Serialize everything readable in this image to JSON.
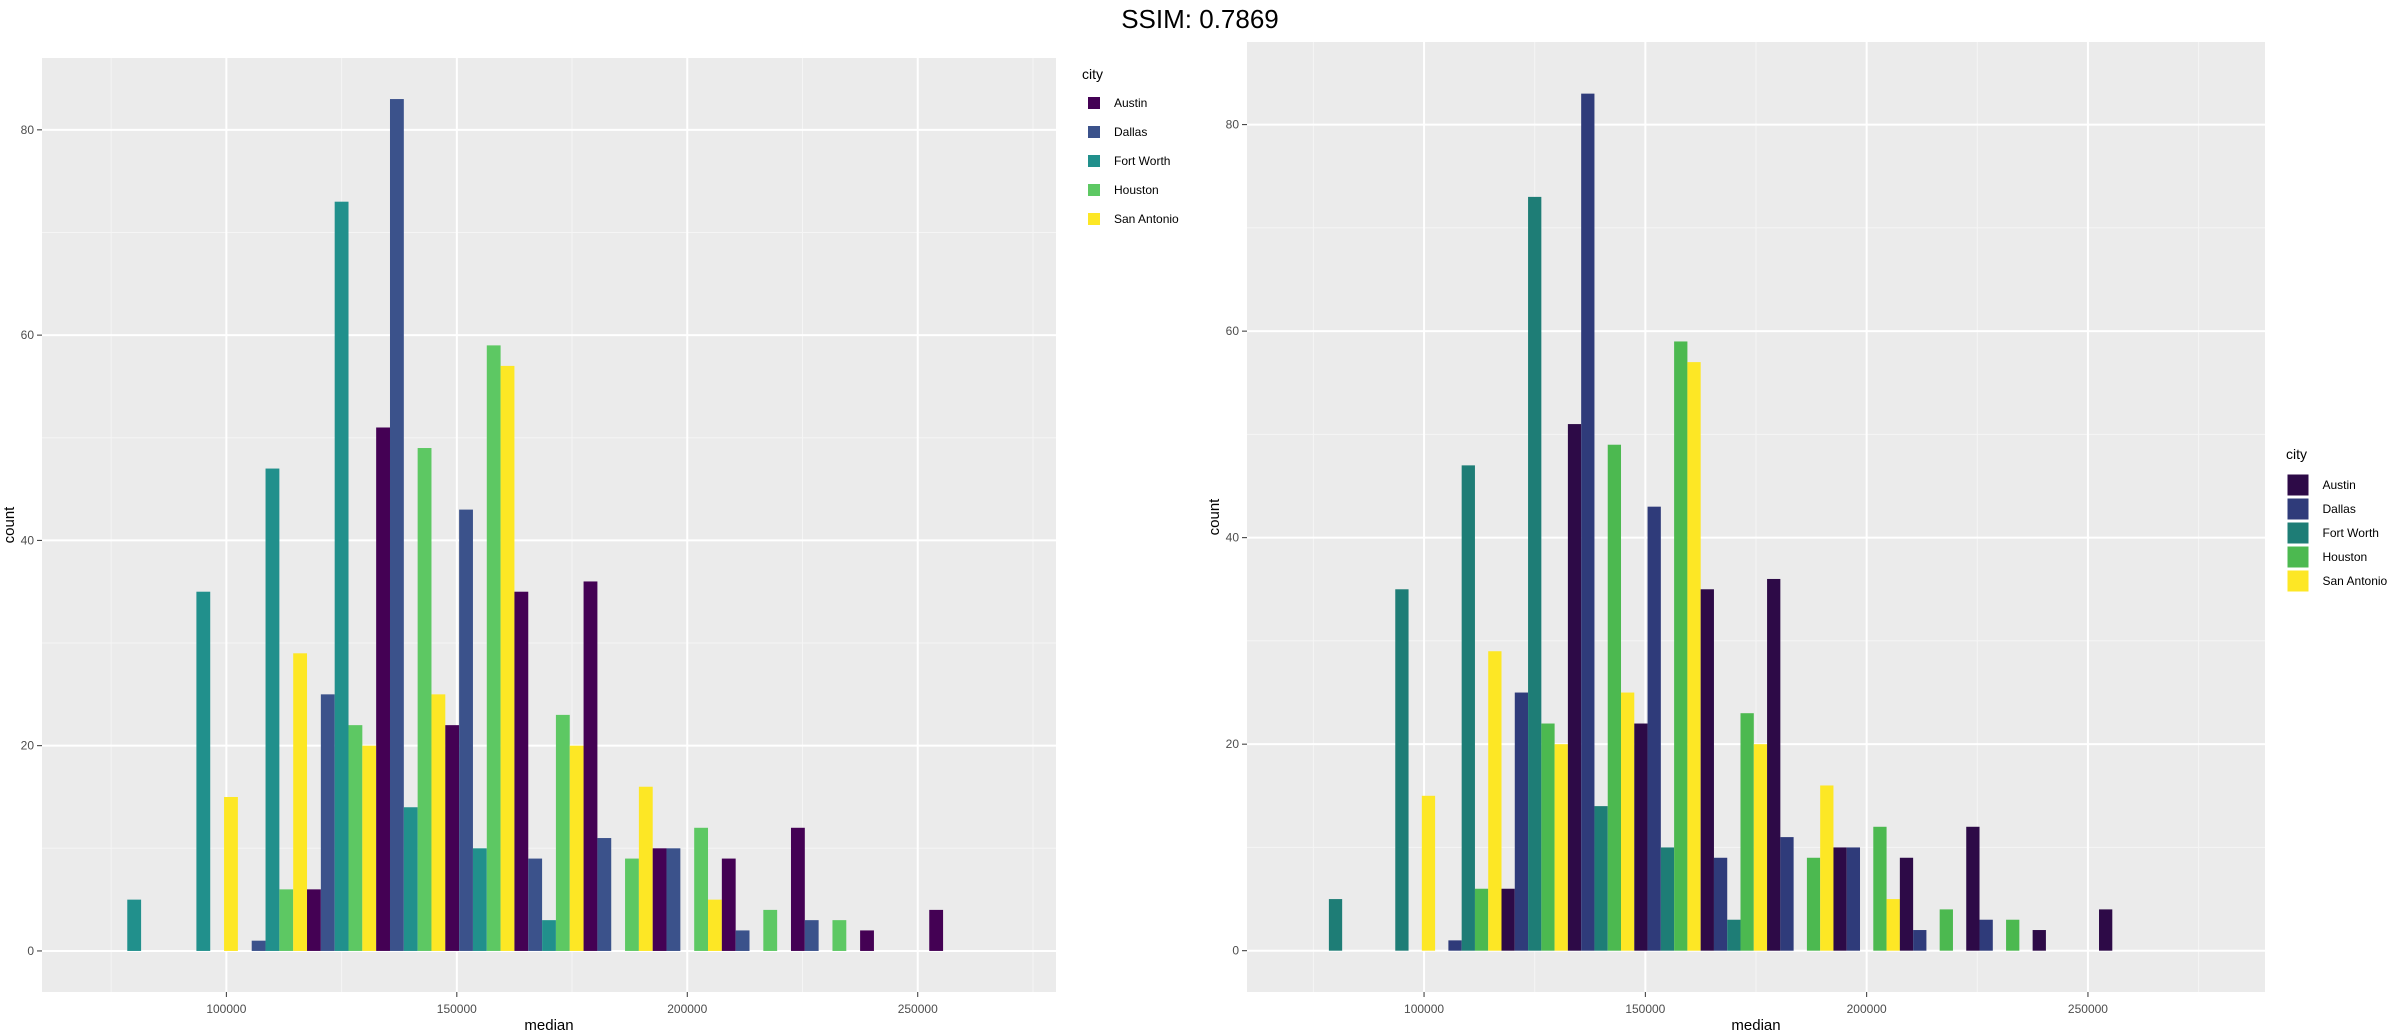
{
  "title": "SSIM: 0.7869",
  "colors": {
    "panel_bg": "#EBEBEB",
    "grid_major": "#FFFFFF",
    "left_palette": [
      "#440154",
      "#3B528B",
      "#21908C",
      "#5DC863",
      "#FDE725"
    ],
    "right_palette": [
      "#2D0A47",
      "#2F3B7A",
      "#1E7D76",
      "#4CB950",
      "#FDE725"
    ]
  },
  "chart_data": [
    {
      "type": "bar",
      "xlabel": "median",
      "ylabel": "count",
      "xlim": [
        60000,
        280000
      ],
      "ylim": [
        -4,
        87
      ],
      "xticks": [
        100000,
        150000,
        200000,
        250000
      ],
      "xtick_labels": [
        "100000",
        "150000",
        "200000",
        "250000"
      ],
      "yticks": [
        0,
        20,
        40,
        60,
        80
      ],
      "ytick_labels": [
        "0",
        "20",
        "40",
        "60",
        "80"
      ],
      "legend": {
        "title": "city",
        "position": "top-right",
        "entries": [
          "Austin",
          "Dallas",
          "Fort Worth",
          "Houston",
          "San Antonio"
        ]
      },
      "bin_width": 15000,
      "bin_centers": [
        80000,
        95000,
        110000,
        125000,
        140000,
        155000,
        170000,
        185000,
        200000,
        215000,
        230000,
        245000,
        260000
      ],
      "series": [
        {
          "name": "Austin",
          "values": [
            0,
            0,
            0,
            6,
            51,
            22,
            35,
            36,
            10,
            9,
            12,
            2,
            4
          ]
        },
        {
          "name": "Dallas",
          "values": [
            0,
            0,
            1,
            25,
            83,
            43,
            9,
            11,
            10,
            2,
            3,
            0,
            0
          ]
        },
        {
          "name": "Fort Worth",
          "values": [
            5,
            35,
            47,
            73,
            14,
            10,
            3,
            0,
            0,
            0,
            0,
            0,
            0
          ]
        },
        {
          "name": "Houston",
          "values": [
            0,
            0,
            6,
            22,
            49,
            59,
            23,
            9,
            12,
            4,
            3,
            0,
            0
          ]
        },
        {
          "name": "San Antonio",
          "values": [
            0,
            15,
            29,
            20,
            25,
            57,
            20,
            16,
            5,
            0,
            0,
            0,
            0
          ]
        }
      ]
    },
    {
      "type": "bar",
      "xlabel": "median",
      "ylabel": "count",
      "xlim": [
        60000,
        290000
      ],
      "ylim": [
        -4,
        88
      ],
      "xticks": [
        100000,
        150000,
        200000,
        250000
      ],
      "xtick_labels": [
        "100000",
        "150000",
        "200000",
        "250000"
      ],
      "yticks": [
        0,
        20,
        40,
        60,
        80
      ],
      "ytick_labels": [
        "0",
        "20",
        "40",
        "60",
        "80"
      ],
      "legend": {
        "title": "city",
        "position": "right",
        "entries": [
          "Austin",
          "Dallas",
          "Fort Worth",
          "Houston",
          "San Antonio"
        ]
      },
      "bin_width": 15000,
      "bin_centers": [
        80000,
        95000,
        110000,
        125000,
        140000,
        155000,
        170000,
        185000,
        200000,
        215000,
        230000,
        245000,
        260000
      ],
      "series": [
        {
          "name": "Austin",
          "values": [
            0,
            0,
            0,
            6,
            51,
            22,
            35,
            36,
            10,
            9,
            12,
            2,
            4
          ]
        },
        {
          "name": "Dallas",
          "values": [
            0,
            0,
            1,
            25,
            83,
            43,
            9,
            11,
            10,
            2,
            3,
            0,
            0
          ]
        },
        {
          "name": "Fort Worth",
          "values": [
            5,
            35,
            47,
            73,
            14,
            10,
            3,
            0,
            0,
            0,
            0,
            0,
            0
          ]
        },
        {
          "name": "Houston",
          "values": [
            0,
            0,
            6,
            22,
            49,
            59,
            23,
            9,
            12,
            4,
            3,
            0,
            0
          ]
        },
        {
          "name": "San Antonio",
          "values": [
            0,
            15,
            29,
            20,
            25,
            57,
            20,
            16,
            5,
            0,
            0,
            0,
            0
          ]
        }
      ]
    }
  ]
}
